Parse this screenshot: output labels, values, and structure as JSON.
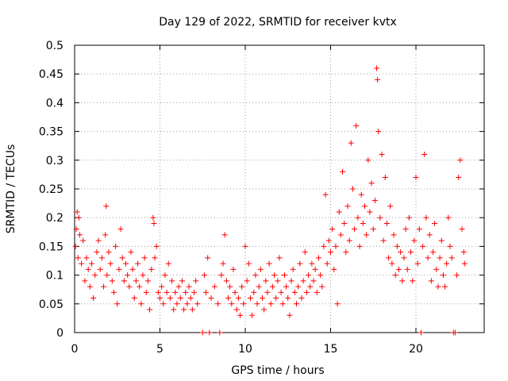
{
  "chart_data": {
    "type": "scatter",
    "title": "Day 129 of 2022, SRMTID for receiver kvtx",
    "xlabel": "GPS time / hours",
    "ylabel": "SRMTID / TECUs",
    "xlim": [
      0,
      24
    ],
    "ylim": [
      0,
      0.5
    ],
    "x_ticks": [
      0,
      5,
      10,
      15,
      20
    ],
    "x_tick_labels": [
      "0",
      "5",
      "10",
      "15",
      "20"
    ],
    "y_ticks": [
      0,
      0.05,
      0.1,
      0.15,
      0.2,
      0.25,
      0.3,
      0.35,
      0.4,
      0.45,
      0.5
    ],
    "y_tick_labels": [
      "0",
      "0.05",
      "0.1",
      "0.15",
      "0.2",
      "0.25",
      "0.3",
      "0.35",
      "0.4",
      "0.45",
      "0.5"
    ],
    "grid": true,
    "marker": "plus",
    "color": "#ff0000",
    "series": [
      {
        "name": "SRMTID",
        "points": [
          [
            0.05,
            0.15
          ],
          [
            0.1,
            0.18
          ],
          [
            0.15,
            0.21
          ],
          [
            0.2,
            0.13
          ],
          [
            0.25,
            0.2
          ],
          [
            0.3,
            0.17
          ],
          [
            0.4,
            0.12
          ],
          [
            0.5,
            0.16
          ],
          [
            0.6,
            0.09
          ],
          [
            0.7,
            0.13
          ],
          [
            0.8,
            0.11
          ],
          [
            0.9,
            0.08
          ],
          [
            1.0,
            0.12
          ],
          [
            1.1,
            0.06
          ],
          [
            1.2,
            0.1
          ],
          [
            1.3,
            0.14
          ],
          [
            1.4,
            0.16
          ],
          [
            1.5,
            0.11
          ],
          [
            1.6,
            0.13
          ],
          [
            1.7,
            0.08
          ],
          [
            1.8,
            0.17
          ],
          [
            1.85,
            0.22
          ],
          [
            1.9,
            0.1
          ],
          [
            2.0,
            0.14
          ],
          [
            2.1,
            0.12
          ],
          [
            2.2,
            0.09
          ],
          [
            2.3,
            0.07
          ],
          [
            2.4,
            0.15
          ],
          [
            2.5,
            0.05
          ],
          [
            2.6,
            0.11
          ],
          [
            2.7,
            0.18
          ],
          [
            2.8,
            0.13
          ],
          [
            2.9,
            0.09
          ],
          [
            3.0,
            0.12
          ],
          [
            3.1,
            0.1
          ],
          [
            3.2,
            0.08
          ],
          [
            3.3,
            0.14
          ],
          [
            3.4,
            0.11
          ],
          [
            3.5,
            0.06
          ],
          [
            3.6,
            0.09
          ],
          [
            3.7,
            0.12
          ],
          [
            3.8,
            0.08
          ],
          [
            3.9,
            0.05
          ],
          [
            4.0,
            0.1
          ],
          [
            4.1,
            0.13
          ],
          [
            4.2,
            0.07
          ],
          [
            4.3,
            0.09
          ],
          [
            4.4,
            0.04
          ],
          [
            4.5,
            0.11
          ],
          [
            4.6,
            0.2
          ],
          [
            4.65,
            0.19
          ],
          [
            4.7,
            0.13
          ],
          [
            4.8,
            0.15
          ],
          [
            4.9,
            0.07
          ],
          [
            5.0,
            0.06
          ],
          [
            5.1,
            0.08
          ],
          [
            5.2,
            0.05
          ],
          [
            5.3,
            0.1
          ],
          [
            5.4,
            0.07
          ],
          [
            5.5,
            0.12
          ],
          [
            5.6,
            0.06
          ],
          [
            5.7,
            0.09
          ],
          [
            5.8,
            0.04
          ],
          [
            5.9,
            0.07
          ],
          [
            6.0,
            0.05
          ],
          [
            6.1,
            0.08
          ],
          [
            6.2,
            0.06
          ],
          [
            6.3,
            0.09
          ],
          [
            6.4,
            0.04
          ],
          [
            6.5,
            0.07
          ],
          [
            6.6,
            0.05
          ],
          [
            6.7,
            0.08
          ],
          [
            6.8,
            0.06
          ],
          [
            6.9,
            0.04
          ],
          [
            7.0,
            0.07
          ],
          [
            7.1,
            0.09
          ],
          [
            7.2,
            0.05
          ],
          [
            7.5,
            0.0
          ],
          [
            7.6,
            0.1
          ],
          [
            7.7,
            0.07
          ],
          [
            7.8,
            0.13
          ],
          [
            7.9,
            0.0
          ],
          [
            8.0,
            0.06
          ],
          [
            8.2,
            0.08
          ],
          [
            8.4,
            0.05
          ],
          [
            8.5,
            0.0
          ],
          [
            8.6,
            0.1
          ],
          [
            8.7,
            0.12
          ],
          [
            8.8,
            0.17
          ],
          [
            8.9,
            0.09
          ],
          [
            9.0,
            0.06
          ],
          [
            9.1,
            0.08
          ],
          [
            9.2,
            0.05
          ],
          [
            9.3,
            0.11
          ],
          [
            9.4,
            0.07
          ],
          [
            9.5,
            0.04
          ],
          [
            9.6,
            0.06
          ],
          [
            9.7,
            0.03
          ],
          [
            9.8,
            0.08
          ],
          [
            9.9,
            0.05
          ],
          [
            10.0,
            0.15
          ],
          [
            10.1,
            0.09
          ],
          [
            10.2,
            0.12
          ],
          [
            10.3,
            0.06
          ],
          [
            10.4,
            0.03
          ],
          [
            10.5,
            0.07
          ],
          [
            10.6,
            0.1
          ],
          [
            10.7,
            0.05
          ],
          [
            10.8,
            0.08
          ],
          [
            10.9,
            0.11
          ],
          [
            11.0,
            0.06
          ],
          [
            11.1,
            0.04
          ],
          [
            11.2,
            0.09
          ],
          [
            11.3,
            0.07
          ],
          [
            11.4,
            0.12
          ],
          [
            11.5,
            0.05
          ],
          [
            11.6,
            0.08
          ],
          [
            11.7,
            0.1
          ],
          [
            11.8,
            0.06
          ],
          [
            11.9,
            0.09
          ],
          [
            12.0,
            0.13
          ],
          [
            12.1,
            0.07
          ],
          [
            12.2,
            0.05
          ],
          [
            12.3,
            0.1
          ],
          [
            12.4,
            0.08
          ],
          [
            12.5,
            0.06
          ],
          [
            12.6,
            0.03
          ],
          [
            12.7,
            0.09
          ],
          [
            12.8,
            0.11
          ],
          [
            12.9,
            0.07
          ],
          [
            13.0,
            0.05
          ],
          [
            13.1,
            0.08
          ],
          [
            13.2,
            0.12
          ],
          [
            13.3,
            0.06
          ],
          [
            13.4,
            0.09
          ],
          [
            13.5,
            0.14
          ],
          [
            13.6,
            0.07
          ],
          [
            13.7,
            0.1
          ],
          [
            13.8,
            0.08
          ],
          [
            13.9,
            0.12
          ],
          [
            14.0,
            0.09
          ],
          [
            14.1,
            0.11
          ],
          [
            14.2,
            0.07
          ],
          [
            14.3,
            0.13
          ],
          [
            14.4,
            0.1
          ],
          [
            14.5,
            0.08
          ],
          [
            14.6,
            0.15
          ],
          [
            14.7,
            0.24
          ],
          [
            14.8,
            0.12
          ],
          [
            14.9,
            0.16
          ],
          [
            15.0,
            0.14
          ],
          [
            15.1,
            0.18
          ],
          [
            15.2,
            0.11
          ],
          [
            15.3,
            0.15
          ],
          [
            15.4,
            0.05
          ],
          [
            15.5,
            0.21
          ],
          [
            15.6,
            0.17
          ],
          [
            15.7,
            0.28
          ],
          [
            15.8,
            0.19
          ],
          [
            15.9,
            0.14
          ],
          [
            16.0,
            0.22
          ],
          [
            16.1,
            0.16
          ],
          [
            16.2,
            0.33
          ],
          [
            16.3,
            0.25
          ],
          [
            16.4,
            0.18
          ],
          [
            16.5,
            0.36
          ],
          [
            16.6,
            0.2
          ],
          [
            16.7,
            0.15
          ],
          [
            16.8,
            0.24
          ],
          [
            16.9,
            0.19
          ],
          [
            17.0,
            0.22
          ],
          [
            17.1,
            0.17
          ],
          [
            17.2,
            0.3
          ],
          [
            17.3,
            0.21
          ],
          [
            17.4,
            0.26
          ],
          [
            17.5,
            0.18
          ],
          [
            17.6,
            0.23
          ],
          [
            17.7,
            0.46
          ],
          [
            17.75,
            0.44
          ],
          [
            17.8,
            0.35
          ],
          [
            17.9,
            0.2
          ],
          [
            18.0,
            0.31
          ],
          [
            18.1,
            0.16
          ],
          [
            18.2,
            0.27
          ],
          [
            18.3,
            0.19
          ],
          [
            18.4,
            0.13
          ],
          [
            18.5,
            0.22
          ],
          [
            18.6,
            0.12
          ],
          [
            18.7,
            0.17
          ],
          [
            18.8,
            0.1
          ],
          [
            18.9,
            0.15
          ],
          [
            19.0,
            0.11
          ],
          [
            19.1,
            0.14
          ],
          [
            19.2,
            0.09
          ],
          [
            19.3,
            0.13
          ],
          [
            19.4,
            0.18
          ],
          [
            19.5,
            0.11
          ],
          [
            19.6,
            0.2
          ],
          [
            19.7,
            0.14
          ],
          [
            19.8,
            0.09
          ],
          [
            19.9,
            0.16
          ],
          [
            20.0,
            0.27
          ],
          [
            20.1,
            0.12
          ],
          [
            20.2,
            0.18
          ],
          [
            20.3,
            0.0
          ],
          [
            20.4,
            0.15
          ],
          [
            20.5,
            0.31
          ],
          [
            20.6,
            0.2
          ],
          [
            20.7,
            0.13
          ],
          [
            20.8,
            0.17
          ],
          [
            20.9,
            0.09
          ],
          [
            21.0,
            0.14
          ],
          [
            21.1,
            0.19
          ],
          [
            21.2,
            0.11
          ],
          [
            21.3,
            0.08
          ],
          [
            21.4,
            0.13
          ],
          [
            21.5,
            0.16
          ],
          [
            21.6,
            0.1
          ],
          [
            21.7,
            0.08
          ],
          [
            21.8,
            0.12
          ],
          [
            21.9,
            0.2
          ],
          [
            22.0,
            0.15
          ],
          [
            22.1,
            0.13
          ],
          [
            22.2,
            0.0
          ],
          [
            22.3,
            0.0
          ],
          [
            22.4,
            0.1
          ],
          [
            22.5,
            0.27
          ],
          [
            22.6,
            0.3
          ],
          [
            22.7,
            0.18
          ],
          [
            22.8,
            0.14
          ],
          [
            22.85,
            0.12
          ]
        ]
      }
    ]
  }
}
